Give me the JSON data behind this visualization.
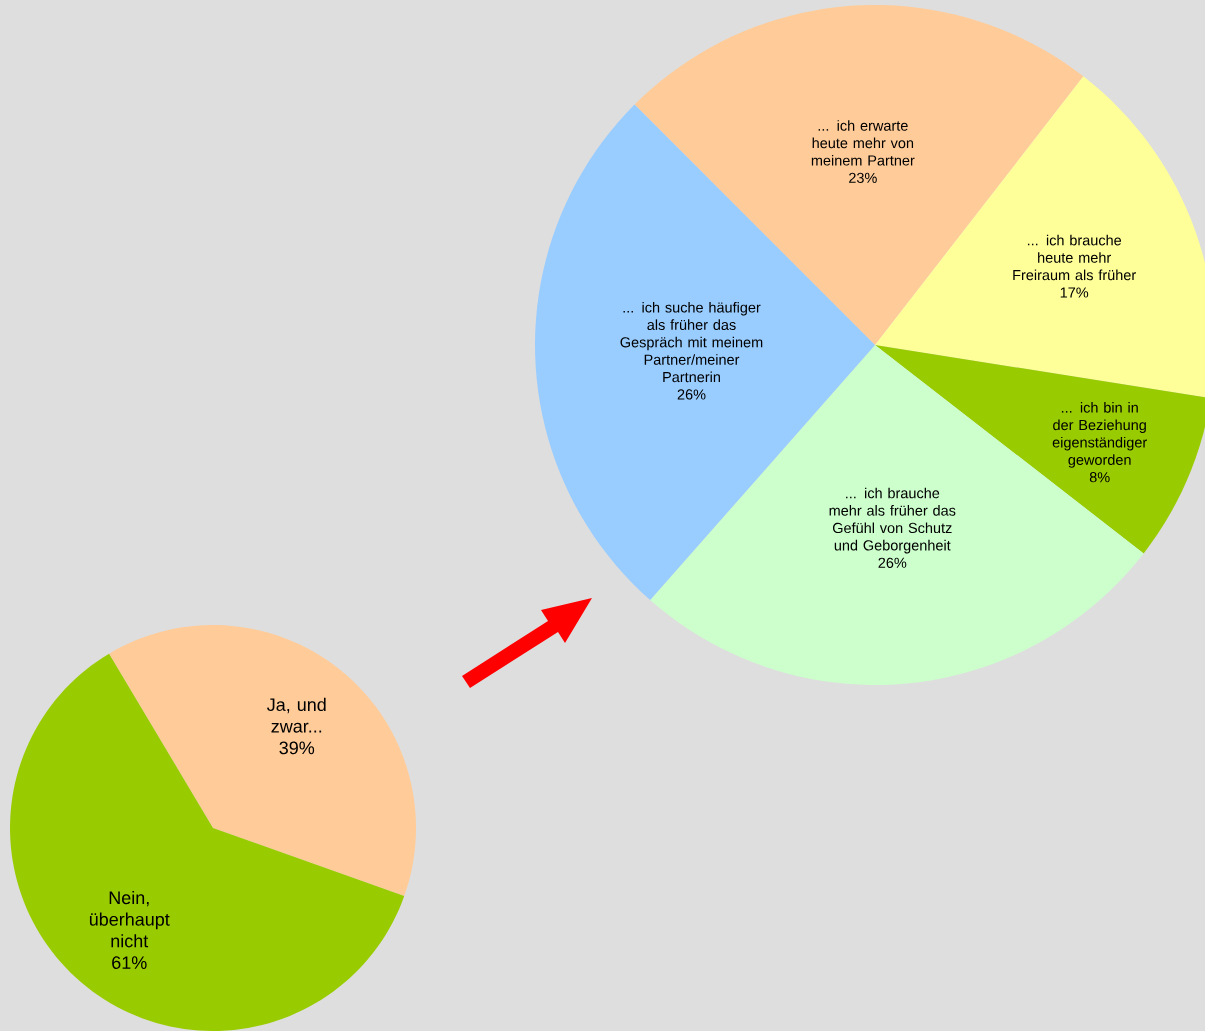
{
  "chart_data": [
    {
      "type": "pie",
      "categories": [
        "Ja, und zwar...",
        "Nein, überhaupt nicht"
      ],
      "values": [
        39,
        61
      ],
      "value_labels": [
        "39%",
        "61%"
      ],
      "colors": [
        "#ffcc99",
        "#99cc00"
      ]
    },
    {
      "type": "pie",
      "categories": [
        "... ich erwarte heute mehr von meinem Partner",
        "... ich brauche heute mehr Freiraum als früher",
        "... ich bin in der Beziehung eigenständiger geworden",
        "... ich brauche mehr als früher das Gefühl von Schutz und Geborgenheit",
        "... ich suche häufiger als früher das Gespräch mit meinem Partner/meiner Partnerin"
      ],
      "values": [
        23,
        17,
        8,
        26,
        26
      ],
      "value_labels": [
        "23%",
        "17%",
        "8%",
        "26%",
        "26%"
      ],
      "colors": [
        "#ffcc99",
        "#ffff99",
        "#99cc00",
        "#ccffcc",
        "#99ccff"
      ]
    }
  ]
}
